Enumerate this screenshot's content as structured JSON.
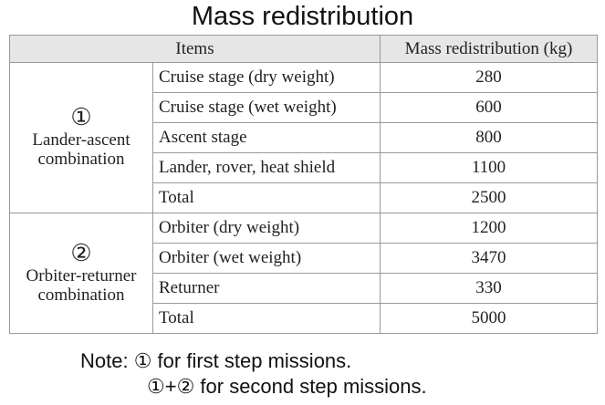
{
  "title": "Mass redistribution",
  "table": {
    "headers": {
      "items": "Items",
      "mass": "Mass redistribution (kg)"
    },
    "groups": [
      {
        "marker": "①",
        "label_line1": "Lander-ascent",
        "label_line2": "combination",
        "rows": [
          {
            "item": "Cruise stage (dry weight)",
            "value": "280"
          },
          {
            "item": "Cruise stage (wet weight)",
            "value": "600"
          },
          {
            "item": "Ascent stage",
            "value": "800"
          },
          {
            "item": "Lander, rover, heat shield",
            "value": "1100"
          },
          {
            "item": "Total",
            "value": "2500"
          }
        ]
      },
      {
        "marker": "②",
        "label_line1": "Orbiter-returner",
        "label_line2": "combination",
        "rows": [
          {
            "item": "Orbiter (dry weight)",
            "value": "1200"
          },
          {
            "item": "Orbiter (wet weight)",
            "value": "3470"
          },
          {
            "item": "Returner",
            "value": "330"
          },
          {
            "item": "Total",
            "value": "5000"
          }
        ]
      }
    ]
  },
  "note": {
    "prefix": "Note:",
    "line1": "① for first step missions.",
    "line2": "①+② for second step missions."
  }
}
